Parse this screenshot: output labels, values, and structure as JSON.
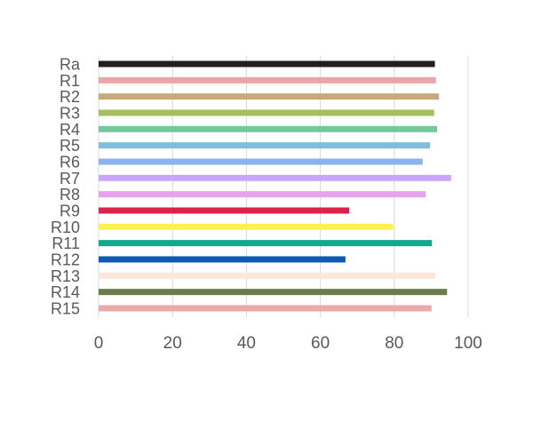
{
  "chart_data": {
    "type": "bar",
    "orientation": "horizontal",
    "categories": [
      "Ra",
      "R1",
      "R2",
      "R3",
      "R4",
      "R5",
      "R6",
      "R7",
      "R8",
      "R9",
      "R10",
      "R11",
      "R12",
      "R13",
      "R14",
      "R15"
    ],
    "values": [
      91,
      91.3,
      92.1,
      90.8,
      91.6,
      89.7,
      87.7,
      95.4,
      88.5,
      67.8,
      79.7,
      90.2,
      66.8,
      91.1,
      94.3,
      90.1
    ],
    "colors": [
      "#231f20",
      "#e8a6a8",
      "#c7a97e",
      "#a6bf5e",
      "#74c99c",
      "#7bbfd8",
      "#8db2f2",
      "#c9a6fb",
      "#e7a3ef",
      "#e0224b",
      "#fff14d",
      "#13a98e",
      "#0b5bb5",
      "#fde6d8",
      "#6b7c4d",
      "#ebaaaa"
    ],
    "xlim": [
      0,
      100
    ],
    "xticks": [
      0,
      20,
      40,
      60,
      80,
      100
    ],
    "grid": "vertical",
    "legend": "none",
    "title": "",
    "xlabel": "",
    "ylabel": ""
  }
}
